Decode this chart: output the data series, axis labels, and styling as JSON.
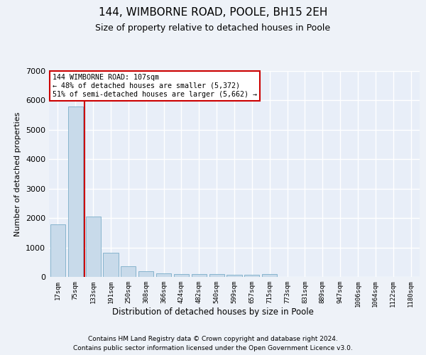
{
  "title": "144, WIMBORNE ROAD, POOLE, BH15 2EH",
  "subtitle": "Size of property relative to detached houses in Poole",
  "xlabel": "Distribution of detached houses by size in Poole",
  "ylabel": "Number of detached properties",
  "bar_color": "#c8daea",
  "bar_edge_color": "#7aadc8",
  "plot_bg_color": "#e8eef8",
  "fig_bg_color": "#eef2f8",
  "grid_color": "#ffffff",
  "vline_color": "#cc0000",
  "vline_x_index": 1.5,
  "annotation_text": "144 WIMBORNE ROAD: 107sqm\n← 48% of detached houses are smaller (5,372)\n51% of semi-detached houses are larger (5,662) →",
  "annotation_box_facecolor": "#ffffff",
  "annotation_box_edgecolor": "#cc0000",
  "categories": [
    "17sqm",
    "75sqm",
    "133sqm",
    "191sqm",
    "250sqm",
    "308sqm",
    "366sqm",
    "424sqm",
    "482sqm",
    "540sqm",
    "599sqm",
    "657sqm",
    "715sqm",
    "773sqm",
    "831sqm",
    "889sqm",
    "947sqm",
    "1006sqm",
    "1064sqm",
    "1122sqm",
    "1180sqm"
  ],
  "values": [
    1780,
    5790,
    2060,
    820,
    360,
    200,
    120,
    100,
    100,
    90,
    80,
    70,
    100,
    0,
    0,
    0,
    0,
    0,
    0,
    0,
    0
  ],
  "ylim": [
    0,
    7000
  ],
  "yticks": [
    0,
    1000,
    2000,
    3000,
    4000,
    5000,
    6000,
    7000
  ],
  "footer_line1": "Contains HM Land Registry data © Crown copyright and database right 2024.",
  "footer_line2": "Contains public sector information licensed under the Open Government Licence v3.0."
}
